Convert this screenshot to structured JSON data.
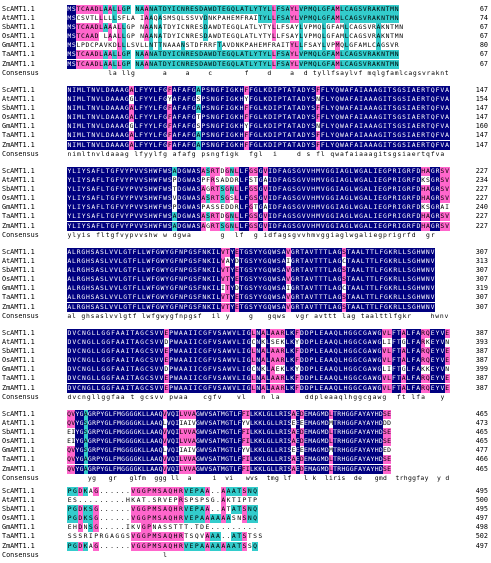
{
  "alignment": {
    "names": [
      "ScAMT1.1",
      "AtAMT1.1",
      "SbAMT1.1",
      "OsAMT1.1",
      "GmAMT1.1",
      "TaAMT1.1",
      "ZmAMT1.1",
      "Consensus"
    ],
    "colors": {
      "identical": "#000080",
      "high": "#ff66cc",
      "similar": "#33cccc"
    },
    "blocks": [
      {
        "rows": [
          {
            "seq": "MSTCAADLAALLGP NAANATDYICNRESDAWDTEGQLATLYTYLLFSAYLVPMQLGFAMLCAGSVRAKNTMN",
            "end": "67"
          },
          {
            "seq": "MSCSVTLLLLLSFLA IAAQASMSQLSSVVDNKPAHEMFRAITYLLFSAYLVPMQLGFAMLCAGSVRAKNTMN",
            "end": "74"
          },
          {
            "seq": "MSTCAADLAAALLGP NAANATDYICNRESDAWDTEGQLATLYTYLLFSAYLVPMQLGFAMLCAGSVRAKNTMN",
            "end": "67"
          },
          {
            "seq": "MSTCAAD LAALLGP NAANATDYICNRESDAWDTEGQLATLYTYLLFSAYLVPMQLGFAMLCAGSVRAKNTMN",
            "end": "67"
          },
          {
            "seq": "MSLPDCPAVKDLLLSVLLNTTNAAANSTDFRRFTAVDNKPAHEMFRAITYLLFSAYLVPMQLGFAMLCAGSVR",
            "end": "80"
          },
          {
            "seq": "MSTCAADLAALLGP NAANATDYICNRESDAWDTEGQLATLYTYLLFSAYLVPMQLGFAMLCAGSVRAKNTMN",
            "end": "67"
          },
          {
            "seq": "MSTCAADLAALLGP NAANATDYICNRESDAWDTEGQLATLYTYLLFSAYLVPMQLGFAMLCAGSVRAKNTMN",
            "end": "67"
          },
          {
            "seq": "         la llg      a    a    c       f    d    a  d tyllfsaylvf mqlgfamlcagsvraknt",
            "end": ""
          }
        ]
      },
      {
        "rows": [
          {
            "seq": "NIMLTNVLDAAAGALFYYLFGFAFAFGAPSNGFIGKHFFGLKDIPTATADYSFFLYQWAFAIAAAGITSGSIAERTQFVA",
            "end": "147"
          },
          {
            "seq": "NIMLTNVLDAAAGGLFYYLFGYAFAFGSPSNGFIGKHYFGLKDIPTATADYSNFLYQWAFAIAAAGITSGSIAERTQFVA",
            "end": "154"
          },
          {
            "seq": "NIMLTNVLDAAAGALFYYLFGFAFAFGAPSNGFIGKHFFGLKDIPTATADYSFFLYQWAFAIAAAGITSGSIAERTQFVA",
            "end": "147"
          },
          {
            "seq": "NIMLTNVLDAAAGALFYYLFGFAFAFGTPSNGFIGKHFFGLKDIPTATADYSFFLYQWAFAIAAAGITSGSIAERTQFVA",
            "end": "147"
          },
          {
            "seq": "NIMLTNVLDAAAGGLFYYLFGFAFAFGSPSNGFIGKHYFGLKDIPTATADYSNFLYQWAFAIAAAGITSGSIAERTQFVA",
            "end": "160"
          },
          {
            "seq": "NIMLTNVLDAAAGALFYYLFGFAFAFGAPSNGFIGKHFFGLKDIPTATADYSFFLYQWAFAIAAAGITSGSIAERTQFVA",
            "end": "147"
          },
          {
            "seq": "NIMLTNVLDAAAGALFYYLFGFAFAFGAPSNGFIGKHFFGLKDIPTATADYSFFLYQWAFAIAAAGITSGSIAERTQFVA",
            "end": "147"
          },
          {
            "seq": "nimltnvldaaag lfyylfg afafg psngfigk  fgl  i    d s fl qwafaiaaagitsgsiaertqfva",
            "end": ""
          }
        ]
      },
      {
        "rows": [
          {
            "seq": "YLIYSAFLTGFVYPVVSHWFWSADGWASASRTDGNLLFGSGVIDFAGSGVVHMVGGIAGLWGALIEGPRIGRFDHAGRSV",
            "end": "227"
          },
          {
            "seq": "YLIYSAFLTGFVYPVVSHWFWSPDGWASPFRSADDRLFSTGAIDFAGSGVVHMVGGIAGLWGALIEGPRIGRFDKSGRSV",
            "end": "234"
          },
          {
            "seq": "YLIYSAFLTGFVYPVVSHWFWSTDGWASAGRTSGNLLFGSGVIDFAGSGVVHMVGGIAGLWGALIEGPRIGRFDHAGRSV",
            "end": "227"
          },
          {
            "seq": "YLIYSAFLTGFVYPVVSHWFWSVDGWASASRTSGSLLFGSGVIDFAGSGVVHMVGGIAGLWGALIEGPRIGRFDHAGRSV",
            "end": "227"
          },
          {
            "seq": "YLIYSAFLTGFVYPVVSHWFWSPDGWASPASSEDDRLFGTGAIDFAGSGVVHMVGGIAGLWGALIEGPRIGRFDKSGRAI",
            "end": "240"
          },
          {
            "seq": "YLIYSAFLTGFVYPVVSHWFWSADGWASASRTDGNLLFGSGVIDFAGSGVVHMVGGIAGLWGALIEGPRIGRFDHAGRSV",
            "end": "227"
          },
          {
            "seq": "YLIYSAFLTGFVYPVVSHWFWSADGWASAGRTSGNLLFGSGVIDFAGSGVVHMVGGIAGLWGALIEGPRIGRFDHAGRSV",
            "end": "227"
          },
          {
            "seq": "ylyis fltgfvypvvshw w dgwa      g  lf  g idfagsgvvhmvggiaglwgaliegprigrfd  gr",
            "end": ""
          }
        ]
      },
      {
        "rows": [
          {
            "seq": "ALRGHSASLVVLGTFLLWFGWYGFNPGSFNKILVTYETGSYYGQWSAVGRTAVTTTLAGSTAALTTLFGKRLLSGHWNV",
            "end": "307"
          },
          {
            "seq": "ALRGHSASLVVLGTFLLWFGWYGFNPGSFNKILVAYDTGSYYGQWSAIGRTAVTTTLAGCTAALTTLFGKRLLSGHWNV",
            "end": "313"
          },
          {
            "seq": "ALRGHSASLVVLGTFLLWFGWYGFNPGSFNKILVTYETGSYYGQWSAVGRTAVTTTLAGSTAALTTLFGKRLLSGHWNV",
            "end": "307"
          },
          {
            "seq": "ALRGHSASLVVLGTFLLWFGWYGFNPGSFNKILVTYETGSYYGQWSAVGRTAVTTTLAGSTAALTTLFGKRLLSGHWNV",
            "end": "307"
          },
          {
            "seq": "ALRGHSASLVVLGTFLLWFGWYGFNPGSFNKILITYDTGSYYGQWSAIGRTAVTTTLAGCTAALTTLFGKRLLSGHWNV",
            "end": "319"
          },
          {
            "seq": "ALRGHSASLVVLGTFLLWFGWYGFNPGSFNKILVTYETGSYYGQWSAVGRTAVTTTLAGSTAALTTLFGKRLLSGHWNV",
            "end": "307"
          },
          {
            "seq": "ALRGHSASLVVLGTFLLWFGWYGFNPGSFNKILVTYETGSYYGQWSAVGRTAVTTTLAGSTAALTTLFGKRLLSGHWNV",
            "end": "307"
          },
          {
            "seq": "al ghsaslvvlgtf lwfgwygfnpgsf  il y    g   gqws  vgr avttt lag taalttlfgkr    hwnv",
            "end": ""
          }
        ]
      },
      {
        "rows": [
          {
            "seq": "DVCNGLLGGFAAITAGCSVVEPWAAIICGFVSAWVLIGLNALAARLKFDDPLEAAQLHGGCGAWGVLFTALFARQEYVE",
            "end": "387"
          },
          {
            "seq": "DVCNGLLGGFAAITAGCSVVDPWAAIICGFVSAWVLIGCNKLSEKLKYDDPLEAAQLHGGCGAWGLIFTGLFARKEYVN",
            "end": "393"
          },
          {
            "seq": "DVCNGLLGGFAAITAGCSVVEPWAAIICGFVSAWVLIGLNALAARLKFDDPLEAAQLHGGCGAWGVLFTALFARQEYVE",
            "end": "387"
          },
          {
            "seq": "DVCNGLLGGFAAITAGCSVVEPWAAIICGFVSAWVLIGLNALAARLKFDDPLEAAQLHGGCGAWGVLFTALFARQEYVE",
            "end": "387"
          },
          {
            "seq": "DVCNGLLGGFAAITAGCSVVDPWAAIICGFVSAWVLIGCNKLAEKLKYDDPLEAAQLHGGCGAWGLIFTGLFAKKEYVN",
            "end": "399"
          },
          {
            "seq": "DVCNGLLGGFAAITAGCSVVEPWAAIICGFVSAWVLIGLNALAARLKFDDPLEAAQLHGGCGAWGVLFTALFARQEYVE",
            "end": "387"
          },
          {
            "seq": "DVCNGLLGGFAAITAGCSVVEPWAAIICGFVSAWVLIGLNALAARLKFDDPLEAAQLHGGCGAWGVLFTALFARQEYVE",
            "end": "387"
          },
          {
            "seq": "dvcngllggfaa t gcsvv pwaa   cgfv   vl   n la     ddpleaaqlhggcgawg  ft lfa   y",
            "end": ""
          }
        ]
      },
      {
        "rows": [
          {
            "seq": "QVYGAGRPYGLFMGGGGKLLAAQVVQILVVAGWVSATMGTLFFILKKLGLLRISAEDEMAGMDLTRHGGFAYAYHDSE",
            "end": "465"
          },
          {
            "seq": "QVYGSGRPYGLFMGGGGKLLAAQLVQIIAIVGWVSATMGTLFYVLKKLGLLRISEEEEMAGMDMTRHGGFAYAYHDDD",
            "end": "473"
          },
          {
            "seq": "EIYGSGRPYGLFMGGGGKLLAAQVVQILVVAGWVSATMGTLFFILKKLGLLRISAEDEMAGMDLTRHGGFAYAYHDSE",
            "end": "465"
          },
          {
            "seq": "EIYGAGRPYGLFMGGGGKLLAAQVVQILVVAGWVSATMGTLFFILKKLGLLRISAEDEMAGMDLTRHGGFAYAYHDSE",
            "end": "465"
          },
          {
            "seq": "QVYGSGRPYGLFMGGGGKLLAAQLVQIIAIVGWVSATMGTLFYVLKKLGLLRISEEEEMAGMDMTRHGGFAYAYHDED",
            "end": "477"
          },
          {
            "seq": "QVYGAGRPYGLFMGGGGKLLAAQVVQILVVAGWVSATMGTLFFILKKLGLLRISAEDEMAGMDLTRHGGFAYAYHDSE",
            "end": "466"
          },
          {
            "seq": "QVYGAGRPYGLFMGGGGKLLAAQVVQILVVAGWVSATMGTLFFILKKLGLLRISAEDEMAGMDLTRHGGFAYAYHDSE",
            "end": "465"
          },
          {
            "seq": "     yg   gr   glfm  ggg ll  a     i  vi   wvs  tmg lf   l k  liris  de   gmd  trhggfay  y d",
            "end": ""
          }
        ]
      },
      {
        "rows": [
          {
            "seq": "PGDKAG......VGGPMSAQHRVEPAA..AAATSNQ",
            "end": "495"
          },
          {
            "seq": "ES.........HKAT.SRVEPRSPSPSG.AKTIPTP",
            "end": "500"
          },
          {
            "seq": "PGDKSG......VGGPMSAQHRVEPAA..ATATSNQ",
            "end": "495"
          },
          {
            "seq": "PGDKSG......VGGPMSAQHRVEPAAAAAASNSNQ",
            "end": "497"
          },
          {
            "seq": "EHDNSG.....IKVGPNASSTTT.TDE.........",
            "end": "498"
          },
          {
            "seq": "SSSRIPRGAGGSVGGPMSAQHRTSQVAAA..ATSTSS",
            "end": "502"
          },
          {
            "seq": "PGDKAG......VGGPMSAQHRVEPAAAAAAATSSQ",
            "end": "497"
          },
          {
            "seq": "                  l",
            "end": ""
          }
        ]
      }
    ]
  }
}
